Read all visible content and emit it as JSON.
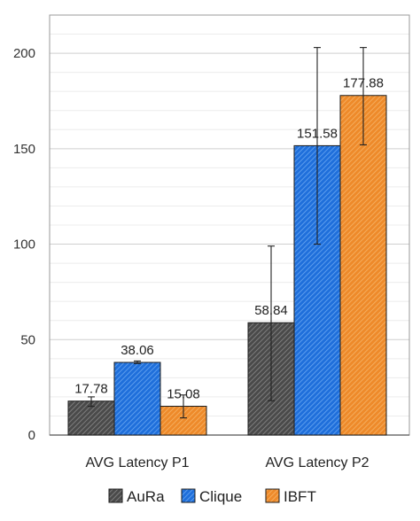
{
  "chart_data": {
    "type": "bar",
    "title": "",
    "xlabel": "",
    "ylabel": "",
    "categories": [
      "AVG Latency P1",
      "AVG Latency P2"
    ],
    "ylim": [
      0,
      220
    ],
    "yticks": [
      0,
      50,
      100,
      150,
      200
    ],
    "grid": true,
    "legend": "bottom",
    "series": [
      {
        "name": "AuRa",
        "values": [
          17.78,
          58.84
        ],
        "err_low": [
          15.0,
          18.0
        ],
        "err_high": [
          20.0,
          99.0
        ],
        "color": "#555555",
        "pattern": "dark-hatch"
      },
      {
        "name": "Clique",
        "values": [
          38.06,
          151.58
        ],
        "err_low": [
          37.5,
          100.0
        ],
        "err_high": [
          38.8,
          203.0
        ],
        "color": "#2f7de1",
        "pattern": "blue-hatch"
      },
      {
        "name": "IBFT",
        "values": [
          15.08,
          177.88
        ],
        "err_low": [
          9.0,
          152.0
        ],
        "err_high": [
          21.0,
          203.0
        ],
        "color": "#f0932b",
        "pattern": "orange-hatch"
      }
    ],
    "data_labels": [
      [
        "17.78",
        "58.84"
      ],
      [
        "38.06",
        "151.58"
      ],
      [
        "15.08",
        "177.88"
      ]
    ]
  }
}
